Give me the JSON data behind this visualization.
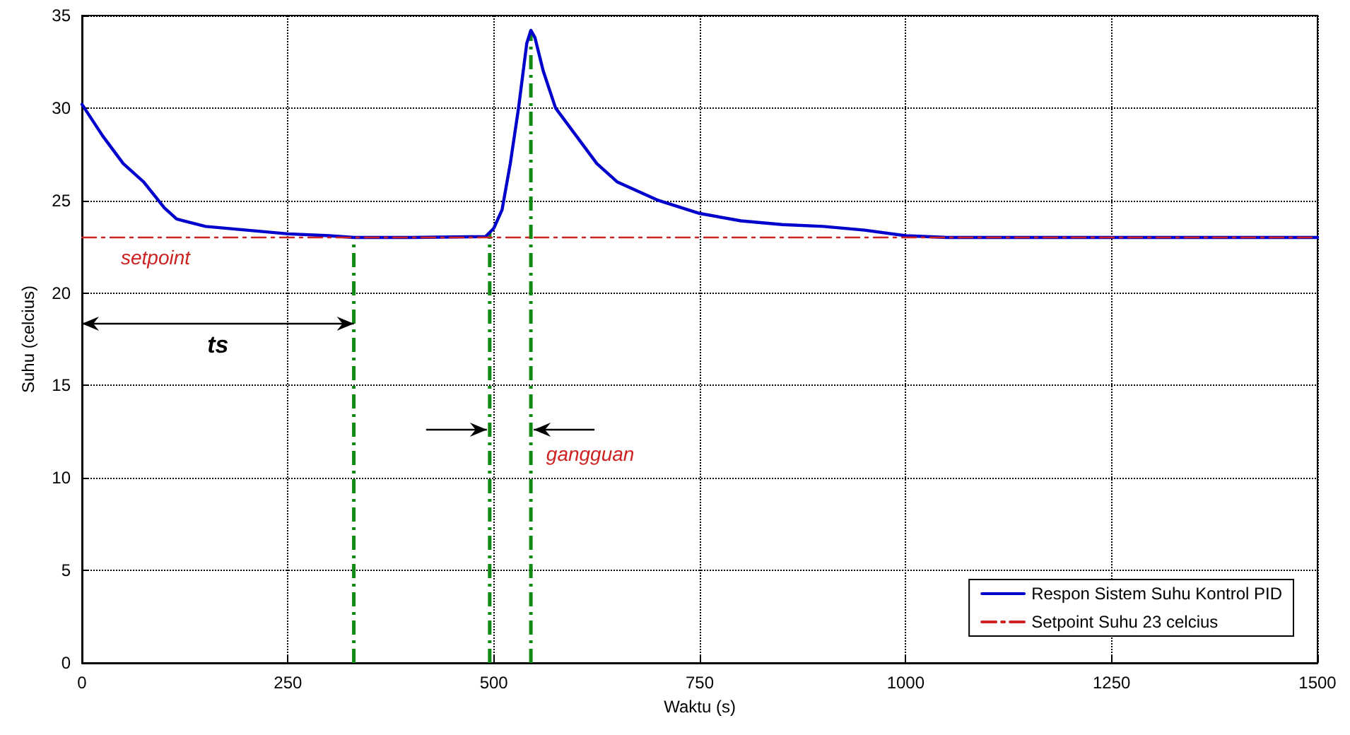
{
  "chart_data": {
    "type": "line",
    "xlabel": "Waktu (s)",
    "ylabel": "Suhu (celcius)",
    "xlim": [
      0,
      1500
    ],
    "xticks": [
      0,
      250,
      500,
      750,
      1000,
      1250,
      1500
    ],
    "ylim": [
      0,
      35
    ],
    "yticks": [
      0,
      5,
      10,
      15,
      20,
      25,
      30,
      35
    ],
    "series": [
      {
        "name": "Respon Sistem Suhu Kontrol PID",
        "color": "#0000cc",
        "line_style": "solid",
        "x": [
          0,
          25,
          50,
          75,
          100,
          115,
          150,
          200,
          250,
          300,
          330,
          400,
          490,
          500,
          510,
          520,
          530,
          540,
          545,
          550,
          560,
          575,
          600,
          625,
          650,
          700,
          750,
          800,
          850,
          900,
          950,
          1000,
          1050,
          1500
        ],
        "values": [
          30.2,
          28.5,
          27,
          26,
          24.6,
          24,
          23.6,
          23.4,
          23.2,
          23.1,
          23,
          23,
          23.05,
          23.5,
          24.5,
          27,
          30,
          33.5,
          34.2,
          33.8,
          32,
          30,
          28.5,
          27,
          26,
          25,
          24.3,
          23.9,
          23.7,
          23.6,
          23.4,
          23.1,
          23,
          23
        ]
      },
      {
        "name": "Setpoint Suhu 23 celcius",
        "color": "#cc2222",
        "line_style": "dashed",
        "x": [
          0,
          1500
        ],
        "values": [
          23,
          23
        ]
      }
    ],
    "ref_lines": [
      {
        "axis": "x",
        "value": 330,
        "color": "#118811",
        "line_style": "dashed"
      },
      {
        "axis": "x",
        "value": 495,
        "color": "#118811",
        "line_style": "dashed"
      },
      {
        "axis": "x",
        "value": 545,
        "color": "#118811",
        "line_style": "dashed"
      }
    ],
    "annotations": [
      "setpoint",
      "ts",
      "gangguan"
    ],
    "grid": true,
    "legend": "bottom right",
    "marker": "none"
  }
}
